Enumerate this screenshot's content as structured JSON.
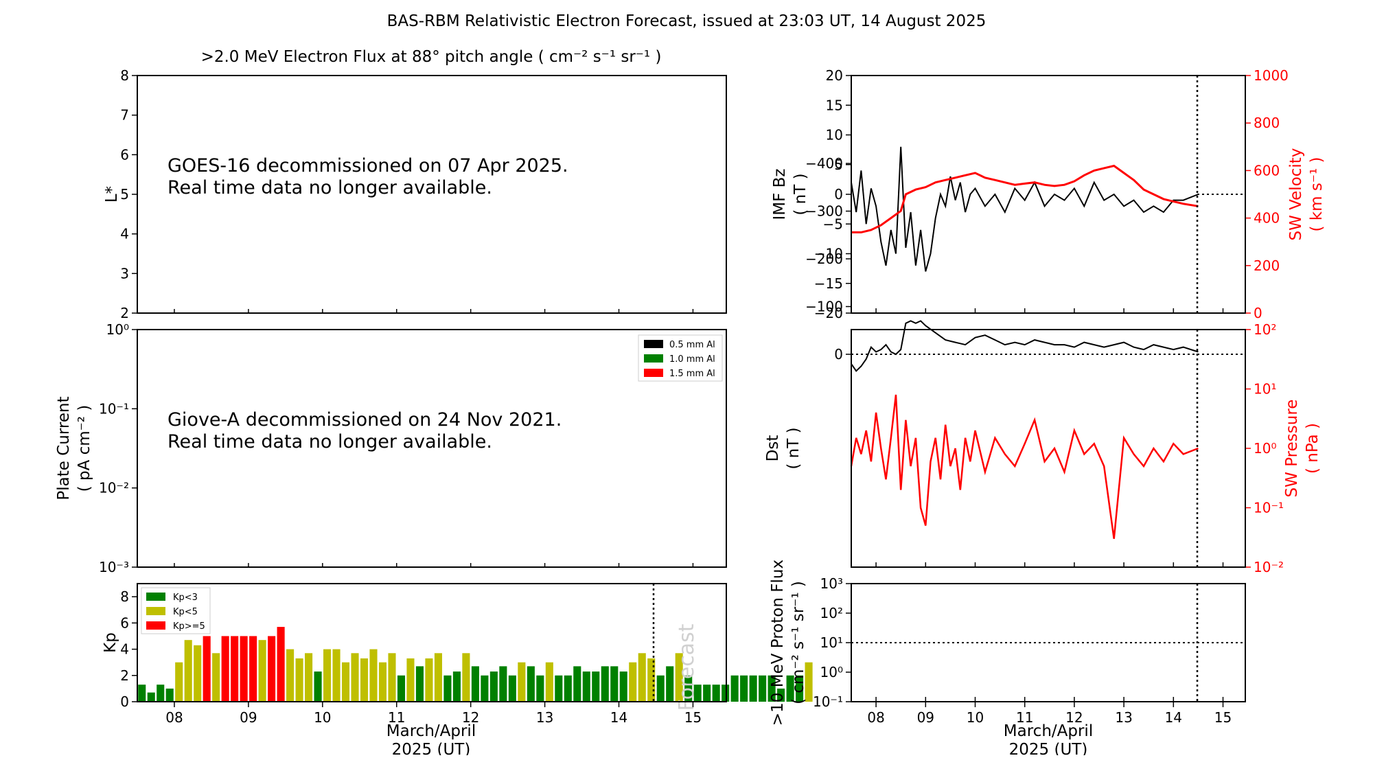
{
  "figure": {
    "title": "BAS-RBM Relativistic Electron Forecast, issued at 23:03 UT, 14 August 2025",
    "colors": {
      "axis": "#000000",
      "red": "#ff0000",
      "green": "#008000",
      "yellow": "#bfbf00",
      "forecast_text": "#d0d0d0"
    }
  },
  "panels": {
    "flux": {
      "title": ">2.0 MeV Electron Flux at 88° pitch angle ( cm⁻² s⁻¹ sr⁻¹ )",
      "ylabel": "L*",
      "ylim": [
        2,
        8
      ],
      "yticks": [
        "2",
        "3",
        "4",
        "5",
        "6",
        "7",
        "8"
      ],
      "message": [
        "GOES-16 decommissioned on 07 Apr 2025.",
        "Real time data no longer available."
      ]
    },
    "plate": {
      "ylabel": [
        "Plate Current",
        "( pA cm⁻² )"
      ],
      "yticks": [
        "10⁻³",
        "10⁻²",
        "10⁻¹",
        "10⁰"
      ],
      "message": [
        "Giove-A decommissioned on 24 Nov 2021.",
        "Real time data no longer available."
      ],
      "legend": [
        {
          "label": "0.5 mm Al",
          "color": "#000000"
        },
        {
          "label": "1.0 mm Al",
          "color": "#008000"
        },
        {
          "label": "1.5 mm Al",
          "color": "#ff0000"
        }
      ]
    },
    "kp": {
      "ylabel": "Kp",
      "ylim": [
        0,
        9
      ],
      "yticks": [
        "0",
        "2",
        "4",
        "6",
        "8"
      ],
      "xticks": [
        "08",
        "09",
        "10",
        "11",
        "12",
        "13",
        "14",
        "15"
      ],
      "xlabel": [
        "March/April",
        "2025 (UT)"
      ],
      "forecast_label": "Forecast",
      "legend": [
        {
          "label": "Kp<3",
          "color": "#008000"
        },
        {
          "label": "Kp<5",
          "color": "#bfbf00"
        },
        {
          "label": "Kp>=5",
          "color": "#ff0000"
        }
      ]
    },
    "imf": {
      "ylabel": [
        "IMF Bz",
        "( nT )"
      ],
      "ylim": [
        -20,
        20
      ],
      "yticks": [
        "−20",
        "−15",
        "−10",
        "−5",
        "0",
        "5",
        "10",
        "15",
        "20"
      ],
      "ylabel_right": [
        "SW Velocity",
        "( km s⁻¹ )"
      ],
      "ylim_right": [
        0,
        1000
      ],
      "yticks_right": [
        "0",
        "200",
        "400",
        "600",
        "800",
        "1000"
      ]
    },
    "dst": {
      "ylabel": [
        "Dst",
        "( nT )"
      ],
      "yticks": [
        "−400",
        "−300",
        "−200",
        "−100",
        "0"
      ],
      "ylabel_right": [
        "SW Pressure",
        "( nPa )"
      ],
      "yticks_right": [
        "10⁻²",
        "10⁻¹",
        "10⁰",
        "10¹",
        "10²"
      ]
    },
    "proton": {
      "ylabel": [
        ">10 MeV Proton Flux",
        "( cm⁻² s⁻¹ sr⁻¹ )"
      ],
      "yticks": [
        "10⁻¹",
        "10⁰",
        "10¹",
        "10²",
        "10³"
      ],
      "xticks": [
        "08",
        "09",
        "10",
        "11",
        "12",
        "13",
        "14",
        "15"
      ],
      "xlabel": [
        "March/April",
        "2025 (UT)"
      ]
    }
  },
  "chart_data": [
    {
      "type": "bar",
      "name": "Kp",
      "x_start_day": 7.5,
      "bar_width_days": 0.125,
      "ylim": [
        0,
        9
      ],
      "values": [
        1.3,
        0.7,
        1.3,
        1.0,
        3.0,
        4.7,
        4.3,
        5.0,
        3.7,
        5.0,
        5.0,
        5.0,
        5.0,
        4.7,
        5.0,
        5.7,
        4.0,
        3.3,
        3.7,
        2.3,
        4.0,
        4.0,
        3.0,
        3.7,
        3.3,
        4.0,
        3.0,
        3.7,
        2.0,
        3.3,
        2.7,
        3.3,
        3.7,
        2.0,
        2.3,
        3.7,
        2.7,
        2.0,
        2.3,
        2.7,
        2.0,
        3.0,
        2.7,
        2.0,
        3.0,
        2.0,
        2.0,
        2.7,
        2.3,
        2.3,
        2.7,
        2.7,
        2.3,
        3.0,
        3.7,
        3.3,
        2.0,
        2.7,
        3.7,
        2.0,
        1.3,
        1.3,
        1.3,
        1.3,
        2.0,
        2.0,
        2.0,
        2.0,
        2.0,
        1.0,
        2.0,
        2.0,
        3.0
      ],
      "forecast_start_day": 14.5
    },
    {
      "type": "line",
      "name": "IMF Bz",
      "x": [
        7.5,
        7.6,
        7.7,
        7.8,
        7.9,
        8.0,
        8.1,
        8.2,
        8.3,
        8.4,
        8.5,
        8.6,
        8.7,
        8.8,
        8.9,
        9.0,
        9.1,
        9.2,
        9.3,
        9.4,
        9.5,
        9.6,
        9.7,
        9.8,
        9.9,
        10.0,
        10.2,
        10.4,
        10.6,
        10.8,
        11.0,
        11.2,
        11.4,
        11.6,
        11.8,
        12.0,
        12.2,
        12.4,
        12.6,
        12.8,
        13.0,
        13.2,
        13.4,
        13.6,
        13.8,
        14.0,
        14.2,
        14.5
      ],
      "y": [
        2,
        -3,
        4,
        -5,
        1,
        -2,
        -8,
        -12,
        -6,
        -10,
        8,
        -9,
        -3,
        -12,
        -6,
        -13,
        -10,
        -4,
        0,
        -2,
        3,
        -1,
        2,
        -3,
        0,
        1,
        -2,
        0,
        -3,
        1,
        -1,
        2,
        -2,
        0,
        -1,
        1,
        -2,
        2,
        -1,
        0,
        -2,
        -1,
        -3,
        -2,
        -3,
        -1,
        -1,
        0
      ]
    },
    {
      "type": "line",
      "name": "SW Velocity",
      "x": [
        7.5,
        7.7,
        7.9,
        8.1,
        8.3,
        8.5,
        8.6,
        8.8,
        9.0,
        9.2,
        9.4,
        9.6,
        9.8,
        10.0,
        10.2,
        10.4,
        10.6,
        10.8,
        11.0,
        11.2,
        11.4,
        11.6,
        11.8,
        12.0,
        12.2,
        12.4,
        12.6,
        12.8,
        13.0,
        13.2,
        13.4,
        13.6,
        13.8,
        14.0,
        14.2,
        14.5
      ],
      "y": [
        340,
        340,
        350,
        370,
        400,
        430,
        500,
        520,
        530,
        550,
        560,
        570,
        580,
        590,
        570,
        560,
        550,
        540,
        545,
        550,
        540,
        535,
        540,
        555,
        580,
        600,
        610,
        620,
        590,
        560,
        520,
        500,
        480,
        470,
        460,
        450
      ]
    },
    {
      "type": "line",
      "name": "Dst",
      "x": [
        7.5,
        7.6,
        7.7,
        7.8,
        7.9,
        8.0,
        8.1,
        8.2,
        8.3,
        8.4,
        8.5,
        8.6,
        8.7,
        8.8,
        8.9,
        9.0,
        9.2,
        9.4,
        9.6,
        9.8,
        10.0,
        10.2,
        10.4,
        10.6,
        10.8,
        11.0,
        11.2,
        11.4,
        11.6,
        11.8,
        12.0,
        12.2,
        12.4,
        12.6,
        12.8,
        13.0,
        13.2,
        13.4,
        13.6,
        13.8,
        14.0,
        14.2,
        14.5
      ],
      "y": [
        20,
        35,
        25,
        10,
        -15,
        -5,
        -10,
        -20,
        -5,
        0,
        -10,
        -65,
        -70,
        -65,
        -70,
        -60,
        -45,
        -30,
        -25,
        -20,
        -35,
        -40,
        -30,
        -20,
        -25,
        -20,
        -30,
        -25,
        -20,
        -20,
        -15,
        -25,
        -20,
        -15,
        -20,
        -25,
        -15,
        -10,
        -20,
        -15,
        -10,
        -15,
        -5
      ]
    },
    {
      "type": "line",
      "name": "SW Pressure",
      "x": [
        7.5,
        7.6,
        7.7,
        7.8,
        7.9,
        8.0,
        8.1,
        8.2,
        8.3,
        8.4,
        8.5,
        8.6,
        8.7,
        8.8,
        8.9,
        9.0,
        9.1,
        9.2,
        9.3,
        9.4,
        9.5,
        9.6,
        9.7,
        9.8,
        9.9,
        10.0,
        10.2,
        10.4,
        10.6,
        10.8,
        11.0,
        11.2,
        11.4,
        11.6,
        11.8,
        12.0,
        12.2,
        12.4,
        12.6,
        12.8,
        13.0,
        13.2,
        13.4,
        13.6,
        13.8,
        14.0,
        14.2,
        14.5
      ],
      "y": [
        0.5,
        1.5,
        0.8,
        2.0,
        0.6,
        4.0,
        1.0,
        0.3,
        1.5,
        8.0,
        0.2,
        3.0,
        0.5,
        1.5,
        0.1,
        0.05,
        0.6,
        1.5,
        0.3,
        2.5,
        0.5,
        1.0,
        0.2,
        1.5,
        0.6,
        2.0,
        0.4,
        1.5,
        0.8,
        0.5,
        1.2,
        3.0,
        0.6,
        1.0,
        0.4,
        2.0,
        0.8,
        1.2,
        0.5,
        0.03,
        1.5,
        0.8,
        0.5,
        1.0,
        0.6,
        1.2,
        0.8,
        1.0
      ]
    },
    {
      "type": "line",
      "name": ">10 MeV Proton Flux",
      "x": [],
      "y": [],
      "threshold": 10
    }
  ]
}
